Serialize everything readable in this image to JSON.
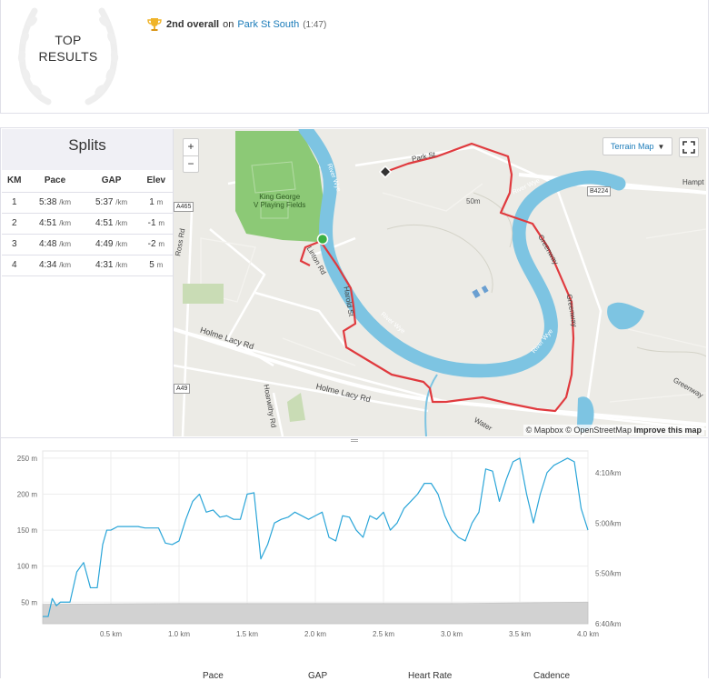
{
  "top_results": {
    "badge_line1": "TOP",
    "badge_line2": "RESULTS",
    "rank_text": "2nd overall",
    "on_text": "on",
    "segment_name": "Park St South",
    "segment_time": "(1:47)"
  },
  "splits": {
    "title": "Splits",
    "columns": [
      "KM",
      "Pace",
      "GAP",
      "Elev"
    ],
    "pace_unit": "/km",
    "elev_unit": "m",
    "rows": [
      {
        "km": "1",
        "pace": "5:38",
        "gap": "5:37",
        "elev": "1"
      },
      {
        "km": "2",
        "pace": "4:51",
        "gap": "4:51",
        "elev": "-1"
      },
      {
        "km": "3",
        "pace": "4:48",
        "gap": "4:49",
        "elev": "-2"
      },
      {
        "km": "4",
        "pace": "4:34",
        "gap": "4:31",
        "elev": "5"
      }
    ]
  },
  "map": {
    "zoom_in": "+",
    "zoom_out": "−",
    "map_type": "Terrain Map",
    "attribution_1": "© Mapbox © OpenStreetMap",
    "attribution_2": "Improve this map",
    "labels": {
      "park": "King George",
      "park2": "V Playing Fields",
      "park_st": "Park St",
      "holme_lacy_1": "Holme Lacy Rd",
      "holme_lacy_2": "Holme Lacy Rd",
      "hoarwithy": "Hoarwithy Rd",
      "ross": "Ross Rd",
      "greenway_1": "Greenway",
      "greenway_2": "Greenway",
      "greenway_3": "Greenway",
      "hampton": "Hampt",
      "a465": "A465",
      "a49": "A49",
      "b4224": "B4224",
      "river_1": "River Wye",
      "river_2": "River Wye",
      "river_3": "River Wye",
      "river_4": "River Wye",
      "linton": "Linton Rd",
      "water": "Water",
      "harold": "Harold St",
      "contour": "50m"
    },
    "colors": {
      "route": "#e03a3e",
      "river": "#7dc4e2",
      "park": "#8cc976",
      "land": "#ecebe6"
    }
  },
  "chart_data": {
    "type": "area",
    "x_tick_labels": [
      "0.5 km",
      "1.0 km",
      "1.5 km",
      "2.0 km",
      "2.5 km",
      "3.0 km",
      "3.5 km",
      "4.0 km"
    ],
    "x_ticks": [
      0.5,
      1.0,
      1.5,
      2.0,
      2.5,
      3.0,
      3.5,
      4.0
    ],
    "xlim": [
      0,
      4.0
    ],
    "y_left_tick_labels": [
      "50 m",
      "100 m",
      "150 m",
      "200 m",
      "250 m"
    ],
    "y_left_ticks": [
      50,
      100,
      150,
      200,
      250
    ],
    "y_left_lim": [
      20,
      260
    ],
    "y_right_tick_labels": [
      "4:10/km",
      "5:00/km",
      "5:50/km",
      "6:40/km"
    ],
    "series": [
      {
        "name": "Elevation",
        "color": "#d2d2d2",
        "x": [
          0,
          1.0,
          2.0,
          3.0,
          4.0
        ],
        "values": [
          47,
          48,
          48,
          48,
          50
        ]
      },
      {
        "name": "Pace",
        "color": "#2aa5d8",
        "x": [
          0.0,
          0.04,
          0.07,
          0.1,
          0.13,
          0.2,
          0.25,
          0.3,
          0.35,
          0.4,
          0.44,
          0.47,
          0.5,
          0.55,
          0.6,
          0.65,
          0.7,
          0.75,
          0.85,
          0.9,
          0.95,
          1.0,
          1.05,
          1.1,
          1.15,
          1.2,
          1.25,
          1.3,
          1.35,
          1.4,
          1.45,
          1.5,
          1.55,
          1.6,
          1.65,
          1.7,
          1.75,
          1.8,
          1.85,
          1.95,
          2.0,
          2.05,
          2.1,
          2.15,
          2.2,
          2.25,
          2.3,
          2.35,
          2.4,
          2.45,
          2.5,
          2.55,
          2.6,
          2.65,
          2.7,
          2.75,
          2.8,
          2.85,
          2.9,
          2.95,
          3.0,
          3.05,
          3.1,
          3.15,
          3.2,
          3.25,
          3.3,
          3.35,
          3.4,
          3.45,
          3.5,
          3.55,
          3.6,
          3.65,
          3.7,
          3.75,
          3.8,
          3.85,
          3.9,
          3.95,
          4.0
        ],
        "values": [
          30,
          30,
          55,
          45,
          50,
          50,
          92,
          105,
          70,
          70,
          130,
          150,
          150,
          155,
          155,
          155,
          155,
          153,
          153,
          132,
          130,
          135,
          165,
          190,
          200,
          175,
          178,
          168,
          170,
          165,
          165,
          200,
          202,
          110,
          130,
          160,
          165,
          168,
          175,
          165,
          170,
          175,
          140,
          135,
          170,
          168,
          150,
          140,
          170,
          165,
          175,
          150,
          160,
          180,
          190,
          200,
          215,
          215,
          200,
          170,
          150,
          140,
          135,
          160,
          175,
          235,
          232,
          190,
          220,
          245,
          250,
          200,
          160,
          200,
          230,
          240,
          245,
          250,
          245,
          180,
          150
        ]
      }
    ],
    "legend": [
      "Pace",
      "GAP",
      "Heart Rate",
      "Cadence"
    ]
  }
}
